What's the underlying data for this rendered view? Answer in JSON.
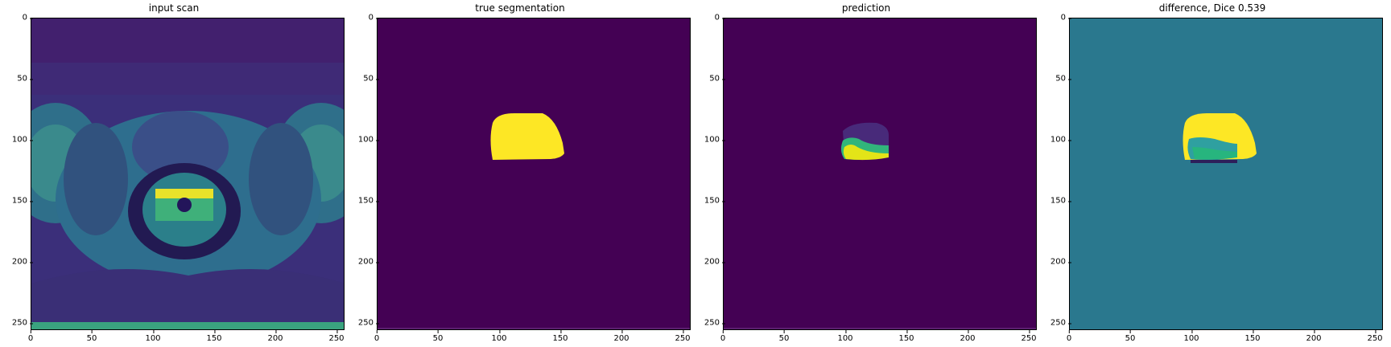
{
  "figure": {
    "panels": [
      {
        "id": "input",
        "title": "input scan"
      },
      {
        "id": "truth",
        "title": "true segmentation"
      },
      {
        "id": "pred",
        "title": "prediction"
      },
      {
        "id": "diff",
        "title": "difference, Dice 0.539"
      }
    ],
    "axis_ticks": {
      "x": [
        "0",
        "50",
        "100",
        "150",
        "200",
        "250"
      ],
      "y": [
        "0",
        "50",
        "100",
        "150",
        "200",
        "250"
      ]
    },
    "colormap": {
      "low": "#440154",
      "mid": "#21918c",
      "high": "#fde725",
      "teal_bg": "#2a788e"
    }
  }
}
